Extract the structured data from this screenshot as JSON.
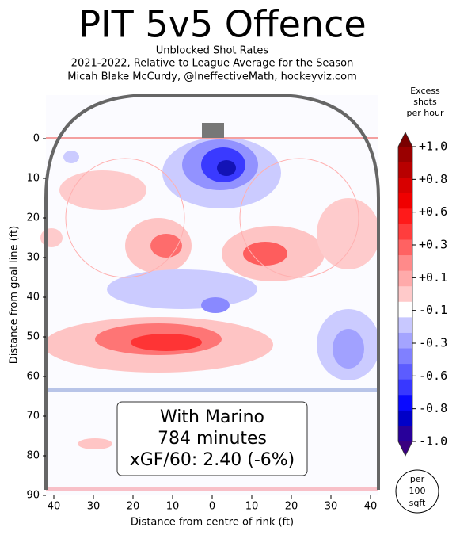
{
  "chart_data": {
    "type": "contour",
    "title": "PIT 5v5 Offence",
    "subtitle": [
      "Unblocked Shot Rates",
      "2021-2022, Relative to League Average for the Season",
      "Micah Blake McCurdy, @IneffectiveMath, hockeyviz.com"
    ],
    "x_label": "Distance from centre of rink (ft)",
    "y_label": "Distance from goal line (ft)",
    "xlim": [
      -42,
      42
    ],
    "ylim": [
      -11,
      90
    ],
    "y_inverted": true,
    "xticks": [
      {
        "value": -40,
        "label": "40"
      },
      {
        "value": -30,
        "label": "30"
      },
      {
        "value": -20,
        "label": "20"
      },
      {
        "value": -10,
        "label": "10"
      },
      0,
      10,
      20,
      30,
      40
    ],
    "yticks": [
      0,
      10,
      20,
      30,
      40,
      50,
      60,
      70,
      80,
      90
    ],
    "annotation": [
      "With Marino",
      "784 minutes",
      "xGF/60: 2.40 (-6%)"
    ],
    "colorbar_title": [
      "Excess",
      "shots",
      "per hour"
    ],
    "colorbar_ticks": [
      {
        "value": 1.0,
        "label": "+1.0"
      },
      {
        "value": 0.8,
        "label": "+0.8"
      },
      {
        "value": 0.6,
        "label": "+0.6"
      },
      {
        "value": 0.3,
        "label": "+0.3"
      },
      {
        "value": 0.1,
        "label": "+0.1"
      },
      {
        "value": -0.1,
        "label": "-0.1"
      },
      {
        "value": -0.3,
        "label": "-0.3"
      },
      {
        "value": -0.6,
        "label": "-0.6"
      },
      {
        "value": -0.8,
        "label": "-0.8"
      },
      {
        "value": -1.0,
        "label": "-1.0"
      }
    ],
    "colorbar_colors": [
      "#7a0000",
      "#9a0000",
      "#b80000",
      "#d80000",
      "#f00000",
      "#ff1a1a",
      "#ff3d3d",
      "#ff6262",
      "#ff8a8a",
      "#ffaaaa",
      "#ffcaca",
      "#ffffff",
      "#c8c8ff",
      "#a4a4ff",
      "#8080ff",
      "#5c5cff",
      "#3838ff",
      "#0a0aff",
      "#0000c8",
      "#28009a",
      "#3a0080"
    ],
    "unit_note": [
      "per",
      "100",
      "sqft"
    ]
  }
}
